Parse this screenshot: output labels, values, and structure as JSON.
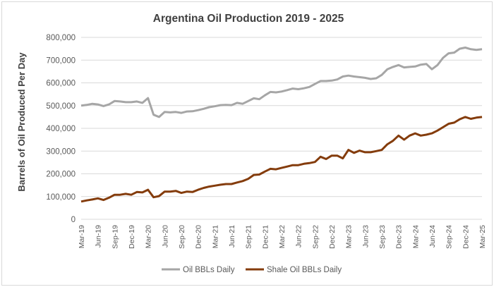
{
  "chart_data": {
    "type": "line",
    "title": "Argentina Oil Production  2019 - 2025",
    "xlabel": "",
    "ylabel": "Barrels of Oil Produced Per Day",
    "ylim": [
      0,
      800000
    ],
    "yticks": [
      "0",
      "100,000",
      "200,000",
      "300,000",
      "400,000",
      "500,000",
      "600,000",
      "700,000",
      "800,000"
    ],
    "ytick_values": [
      0,
      100000,
      200000,
      300000,
      400000,
      500000,
      600000,
      700000,
      800000
    ],
    "grid": true,
    "legend_position": "bottom",
    "x": [
      "Mar-19",
      "Apr-19",
      "May-19",
      "Jun-19",
      "Jul-19",
      "Aug-19",
      "Sep-19",
      "Oct-19",
      "Nov-19",
      "Dec-19",
      "Jan-20",
      "Feb-20",
      "Mar-20",
      "Apr-20",
      "May-20",
      "Jun-20",
      "Jul-20",
      "Aug-20",
      "Sep-20",
      "Oct-20",
      "Nov-20",
      "Dec-20",
      "Jan-21",
      "Feb-21",
      "Mar-21",
      "Apr-21",
      "May-21",
      "Jun-21",
      "Jul-21",
      "Aug-21",
      "Sep-21",
      "Oct-21",
      "Nov-21",
      "Dec-21",
      "Jan-22",
      "Feb-22",
      "Mar-22",
      "Apr-22",
      "May-22",
      "Jun-22",
      "Jul-22",
      "Aug-22",
      "Sep-22",
      "Oct-22",
      "Nov-22",
      "Dec-22",
      "Jan-23",
      "Feb-23",
      "Mar-23",
      "Apr-23",
      "May-23",
      "Jun-23",
      "Jul-23",
      "Aug-23",
      "Sep-23",
      "Oct-23",
      "Nov-23",
      "Dec-23",
      "Jan-24",
      "Feb-24",
      "Mar-24",
      "Apr-24",
      "May-24",
      "Jun-24",
      "Jul-24",
      "Aug-24",
      "Sep-24",
      "Oct-24",
      "Nov-24",
      "Dec-24",
      "Jan-25",
      "Feb-25",
      "Mar-25"
    ],
    "xtick_labels": [
      "Mar-19",
      "Jun-19",
      "Sep-19",
      "Dec-19",
      "Mar-20",
      "Jun-20",
      "Sep-20",
      "Dec-20",
      "Mar-21",
      "Jun-21",
      "Sep-21",
      "Dec-21",
      "Mar-22",
      "Jun-22",
      "Sep-22",
      "Dec-22",
      "Mar-23",
      "Jun-23",
      "Sep-23",
      "Dec-23",
      "Mar-24",
      "Jun-24",
      "Sep-24",
      "Dec-24",
      "Mar-25"
    ],
    "series": [
      {
        "name": "Oil BBLs Daily",
        "color": "#a6a6a6",
        "values": [
          500000,
          503000,
          508000,
          505000,
          498000,
          505000,
          520000,
          518000,
          515000,
          515000,
          518000,
          512000,
          533000,
          460000,
          450000,
          472000,
          470000,
          472000,
          468000,
          474000,
          475000,
          480000,
          486000,
          493000,
          497000,
          502000,
          503000,
          502000,
          512000,
          508000,
          520000,
          532000,
          528000,
          545000,
          560000,
          558000,
          562000,
          568000,
          575000,
          572000,
          576000,
          582000,
          595000,
          608000,
          608000,
          610000,
          615000,
          628000,
          632000,
          628000,
          625000,
          622000,
          617000,
          620000,
          635000,
          660000,
          670000,
          678000,
          668000,
          670000,
          672000,
          680000,
          683000,
          660000,
          678000,
          710000,
          730000,
          733000,
          750000,
          755000,
          748000,
          745000,
          748000
        ]
      },
      {
        "name": "Shale Oil BBLs Daily",
        "color": "#843c0c",
        "values": [
          78000,
          83000,
          87000,
          92000,
          85000,
          95000,
          108000,
          108000,
          112000,
          108000,
          120000,
          118000,
          130000,
          97000,
          102000,
          122000,
          122000,
          125000,
          116000,
          122000,
          120000,
          130000,
          138000,
          144000,
          148000,
          152000,
          155000,
          155000,
          162000,
          168000,
          178000,
          195000,
          197000,
          210000,
          222000,
          220000,
          226000,
          232000,
          238000,
          238000,
          244000,
          247000,
          252000,
          275000,
          265000,
          280000,
          280000,
          268000,
          305000,
          292000,
          302000,
          295000,
          295000,
          300000,
          305000,
          330000,
          345000,
          368000,
          350000,
          368000,
          378000,
          368000,
          372000,
          378000,
          390000,
          405000,
          420000,
          425000,
          440000,
          450000,
          442000,
          447000,
          450000
        ]
      }
    ]
  }
}
